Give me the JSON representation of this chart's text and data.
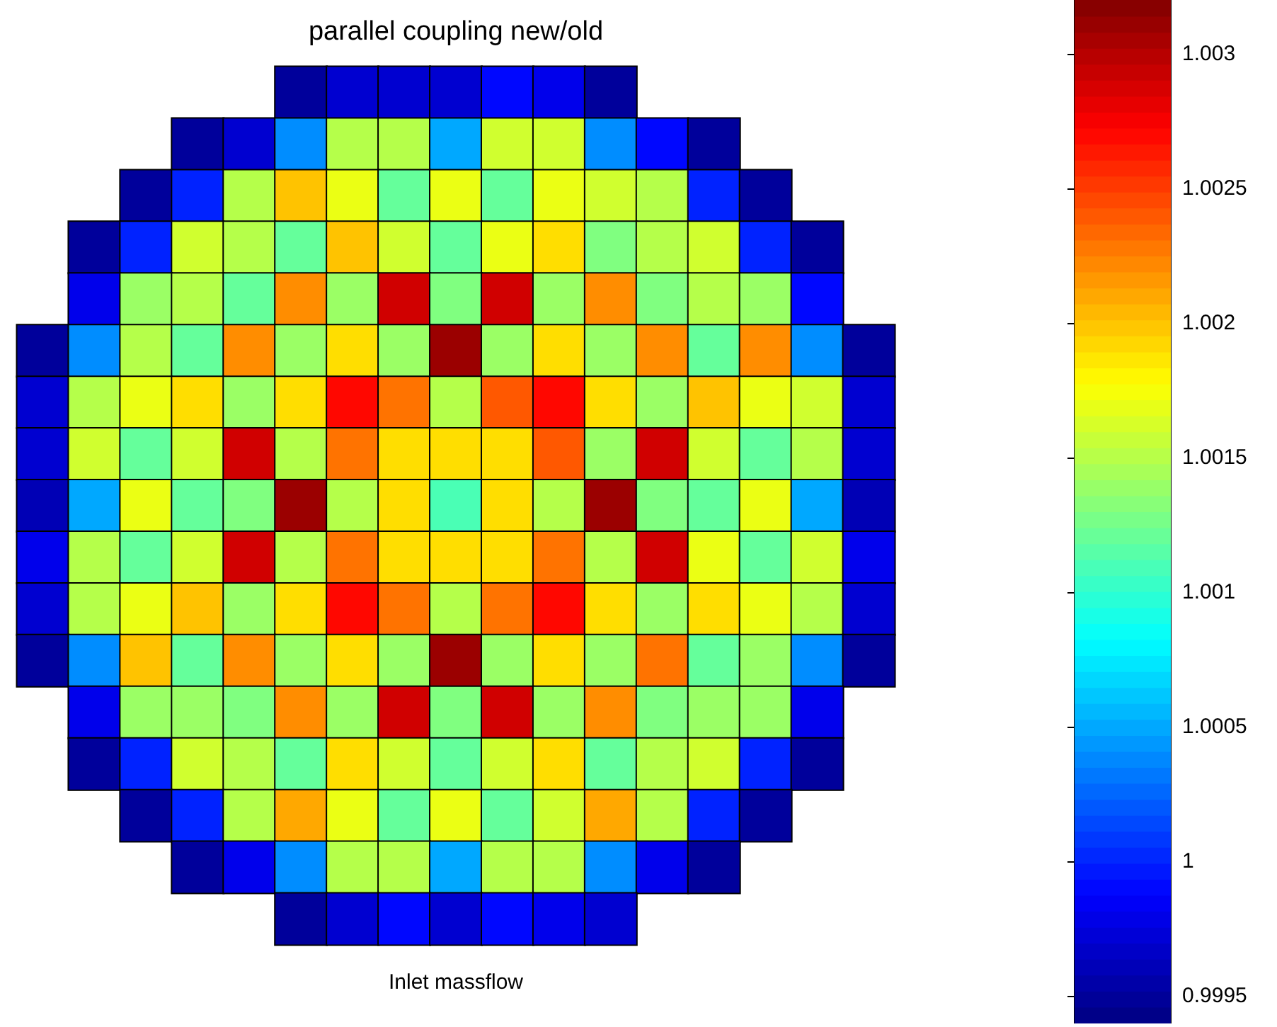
{
  "chart_data": {
    "type": "heatmap",
    "title": "parallel coupling new/old",
    "xlabel": "Inlet massflow",
    "categories": [
      null,
      null,
      null,
      null,
      null,
      null,
      null,
      null,
      null,
      null,
      null,
      null,
      null,
      null,
      null,
      null,
      null
    ],
    "y_categories": [
      null,
      null,
      null,
      null,
      null,
      null,
      null,
      null,
      null,
      null,
      null,
      null,
      null,
      null,
      null,
      null,
      null
    ],
    "clim": [
      0.9994,
      1.0032
    ],
    "cticks": [
      0.9995,
      1,
      1.0005,
      1.001,
      1.0015,
      1.002,
      1.0025,
      1.003
    ],
    "cells": [
      [
        null,
        null,
        null,
        null,
        null,
        0.9995,
        0.9997,
        0.9997,
        0.9997,
        0.9999,
        0.9998,
        0.9995,
        null,
        null,
        null,
        null,
        null
      ],
      [
        null,
        null,
        null,
        0.9995,
        0.9997,
        1.0004,
        1.0015,
        1.0015,
        1.0005,
        1.0016,
        1.0016,
        1.0004,
        0.9999,
        0.9995,
        null,
        null,
        null
      ],
      [
        null,
        null,
        0.9995,
        1.0,
        1.0015,
        1.002,
        1.0017,
        1.0012,
        1.0017,
        1.0012,
        1.0017,
        1.0016,
        1.0015,
        1.0,
        0.9995,
        null,
        null
      ],
      [
        null,
        0.9995,
        1.0,
        1.0016,
        1.0015,
        1.0012,
        1.002,
        1.0016,
        1.0012,
        1.0017,
        1.0019,
        1.0013,
        1.0015,
        1.0016,
        1.0,
        0.9995,
        null
      ],
      [
        null,
        0.9998,
        1.0014,
        1.0015,
        1.0012,
        1.0022,
        1.0014,
        1.0029,
        1.0013,
        1.0029,
        1.0014,
        1.0022,
        1.0013,
        1.0015,
        1.0014,
        0.9999,
        null
      ],
      [
        0.9995,
        1.0004,
        1.0015,
        1.0012,
        1.0022,
        1.0014,
        1.0019,
        1.0014,
        1.0031,
        1.0014,
        1.0019,
        1.0014,
        1.0022,
        1.0012,
        1.0022,
        1.0004,
        0.9995
      ],
      [
        0.9997,
        1.0015,
        1.0017,
        1.0019,
        1.0014,
        1.0019,
        1.0027,
        1.0023,
        1.0015,
        1.0024,
        1.0027,
        1.0019,
        1.0014,
        1.002,
        1.0017,
        1.0016,
        0.9997
      ],
      [
        0.9997,
        1.0016,
        1.0012,
        1.0016,
        1.0029,
        1.0015,
        1.0023,
        1.0019,
        1.0019,
        1.0019,
        1.0024,
        1.0014,
        1.0029,
        1.0016,
        1.0012,
        1.0015,
        0.9997
      ],
      [
        0.9996,
        1.0005,
        1.0017,
        1.0012,
        1.0013,
        1.0031,
        1.0015,
        1.0019,
        1.0011,
        1.0019,
        1.0015,
        1.0031,
        1.0013,
        1.0012,
        1.0017,
        1.0005,
        0.9996
      ],
      [
        0.9998,
        1.0015,
        1.0012,
        1.0016,
        1.0029,
        1.0015,
        1.0023,
        1.0019,
        1.0019,
        1.0019,
        1.0023,
        1.0015,
        1.0029,
        1.0017,
        1.0012,
        1.0016,
        0.9998
      ],
      [
        0.9997,
        1.0015,
        1.0017,
        1.002,
        1.0014,
        1.0019,
        1.0027,
        1.0023,
        1.0015,
        1.0023,
        1.0027,
        1.0019,
        1.0014,
        1.0019,
        1.0017,
        1.0015,
        0.9997
      ],
      [
        0.9995,
        1.0004,
        1.002,
        1.0012,
        1.0022,
        1.0014,
        1.0019,
        1.0014,
        1.0031,
        1.0014,
        1.0019,
        1.0014,
        1.0023,
        1.0012,
        1.0014,
        1.0004,
        0.9995
      ],
      [
        null,
        0.9998,
        1.0014,
        1.0014,
        1.0013,
        1.0022,
        1.0014,
        1.0029,
        1.0013,
        1.0029,
        1.0014,
        1.0022,
        1.0013,
        1.0014,
        1.0014,
        0.9998,
        null
      ],
      [
        null,
        0.9995,
        1.0,
        1.0016,
        1.0015,
        1.0012,
        1.0019,
        1.0016,
        1.0012,
        1.0016,
        1.0019,
        1.0012,
        1.0015,
        1.0016,
        1.0,
        0.9995,
        null
      ],
      [
        null,
        null,
        0.9995,
        1.0,
        1.0015,
        1.0021,
        1.0017,
        1.0012,
        1.0017,
        1.0012,
        1.0016,
        1.0021,
        1.0015,
        1.0,
        0.9995,
        null,
        null
      ],
      [
        null,
        null,
        null,
        0.9995,
        0.9998,
        1.0004,
        1.0015,
        1.0015,
        1.0005,
        1.0015,
        1.0015,
        1.0004,
        0.9998,
        0.9995,
        null,
        null,
        null
      ],
      [
        null,
        null,
        null,
        null,
        null,
        0.9995,
        0.9997,
        0.9999,
        0.9997,
        0.9999,
        0.9998,
        0.9997,
        null,
        null,
        null,
        null,
        null
      ]
    ]
  }
}
